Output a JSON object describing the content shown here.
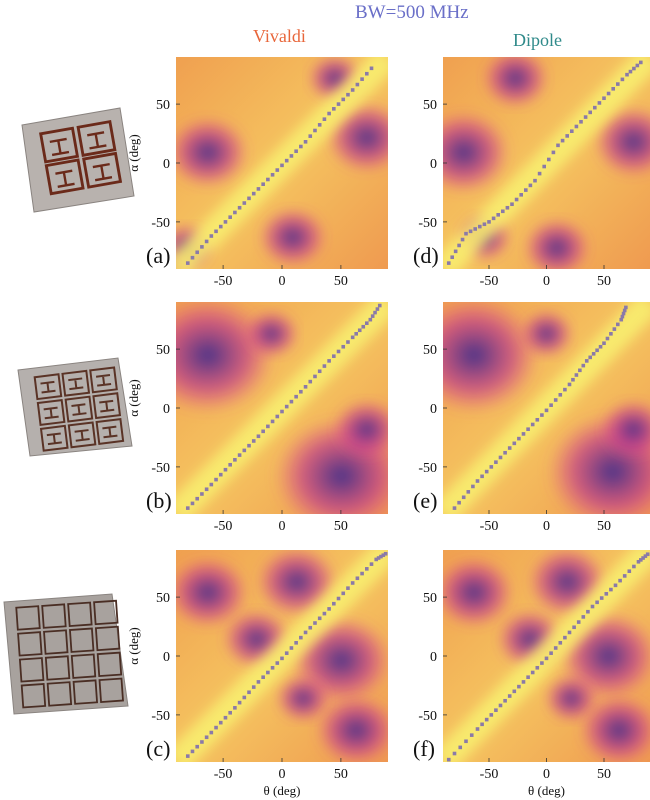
{
  "header": {
    "bandwidth": "BW=500 MHz"
  },
  "columns": [
    {
      "label": "Vivaldi",
      "color": "#e8663a"
    },
    {
      "label": "Dipole",
      "color": "#2f8a8a"
    }
  ],
  "samples": [
    {
      "name": "2x2 metasurface sample",
      "cells": 2
    },
    {
      "name": "3x3 metasurface sample",
      "cells": 3
    },
    {
      "name": "4x4 metasurface sample",
      "cells": 4
    }
  ],
  "colors": {
    "header": "#6a6fc8",
    "low": "#2a1f7a",
    "mid": "#e0408a",
    "high": "#f6f060",
    "markers": "#8a7aa8"
  },
  "chart_data": [
    {
      "id": "a",
      "panel_label": "(a)",
      "type": "heatmap",
      "column": "Vivaldi",
      "sample": "2x2",
      "xlabel": "θ (deg)",
      "ylabel": "α (deg)",
      "xlim": [
        -90,
        90
      ],
      "ylim": [
        -90,
        90
      ],
      "xticks": [
        "-50",
        "0",
        "50"
      ],
      "yticks": [
        "50",
        "0",
        "-50"
      ],
      "show_ylabel": true,
      "show_xticks": true,
      "show_xlabel": false,
      "ridge": [
        [
          -80,
          -85
        ],
        [
          -60,
          -62
        ],
        [
          -40,
          -42
        ],
        [
          -20,
          -22
        ],
        [
          0,
          -2
        ],
        [
          20,
          18
        ],
        [
          40,
          42
        ],
        [
          60,
          62
        ],
        [
          80,
          85
        ]
      ]
    },
    {
      "id": "d",
      "panel_label": "(d)",
      "type": "heatmap",
      "column": "Dipole",
      "sample": "2x2",
      "xlabel": "θ (deg)",
      "ylabel": "α (deg)",
      "xlim": [
        -90,
        90
      ],
      "ylim": [
        -90,
        90
      ],
      "xticks": [
        "-50",
        "0",
        "50"
      ],
      "yticks": [
        "50",
        "0",
        "-50"
      ],
      "show_ylabel": false,
      "show_xticks": true,
      "show_xlabel": false,
      "ridge": [
        [
          -85,
          -85
        ],
        [
          -70,
          -60
        ],
        [
          -50,
          -50
        ],
        [
          -30,
          -35
        ],
        [
          -10,
          -15
        ],
        [
          10,
          15
        ],
        [
          30,
          35
        ],
        [
          50,
          55
        ],
        [
          70,
          75
        ],
        [
          85,
          88
        ]
      ]
    },
    {
      "id": "b",
      "panel_label": "(b)",
      "type": "heatmap",
      "column": "Vivaldi",
      "sample": "3x3",
      "xlabel": "θ (deg)",
      "ylabel": "α (deg)",
      "xlim": [
        -90,
        90
      ],
      "ylim": [
        -90,
        90
      ],
      "xticks": [
        "-50",
        "0",
        "50"
      ],
      "yticks": [
        "50",
        "0",
        "-50"
      ],
      "show_ylabel": true,
      "show_xticks": true,
      "show_xlabel": false,
      "ridge": [
        [
          -80,
          -85
        ],
        [
          -60,
          -65
        ],
        [
          -40,
          -44
        ],
        [
          -20,
          -24
        ],
        [
          0,
          -3
        ],
        [
          20,
          18
        ],
        [
          40,
          40
        ],
        [
          60,
          60
        ],
        [
          75,
          75
        ],
        [
          85,
          90
        ]
      ]
    },
    {
      "id": "e",
      "panel_label": "(e)",
      "type": "heatmap",
      "column": "Dipole",
      "sample": "3x3",
      "xlabel": "θ (deg)",
      "ylabel": "α (deg)",
      "xlim": [
        -90,
        90
      ],
      "ylim": [
        -90,
        90
      ],
      "xticks": [
        "-50",
        "0",
        "50"
      ],
      "yticks": [
        "50",
        "0",
        "-50"
      ],
      "show_ylabel": false,
      "show_xticks": true,
      "show_xlabel": false,
      "ridge": [
        [
          -80,
          -85
        ],
        [
          -60,
          -62
        ],
        [
          -40,
          -42
        ],
        [
          -20,
          -22
        ],
        [
          0,
          -2
        ],
        [
          20,
          20
        ],
        [
          35,
          40
        ],
        [
          50,
          55
        ],
        [
          65,
          75
        ],
        [
          70,
          88
        ]
      ]
    },
    {
      "id": "c",
      "panel_label": "(c)",
      "type": "heatmap",
      "column": "Vivaldi",
      "sample": "4x4",
      "xlabel": "θ (deg)",
      "ylabel": "α (deg)",
      "xlim": [
        -90,
        90
      ],
      "ylim": [
        -90,
        90
      ],
      "xticks": [
        "-50",
        "0",
        "50"
      ],
      "yticks": [
        "50",
        "0",
        "-50"
      ],
      "show_ylabel": true,
      "show_xticks": true,
      "show_xlabel": true,
      "ridge": [
        [
          -80,
          -85
        ],
        [
          -60,
          -65
        ],
        [
          -40,
          -44
        ],
        [
          -20,
          -22
        ],
        [
          0,
          -2
        ],
        [
          20,
          20
        ],
        [
          40,
          40
        ],
        [
          60,
          62
        ],
        [
          80,
          82
        ],
        [
          90,
          88
        ]
      ]
    },
    {
      "id": "f",
      "panel_label": "(f)",
      "type": "heatmap",
      "column": "Dipole",
      "sample": "4x4",
      "xlabel": "θ (deg)",
      "ylabel": "α (deg)",
      "xlim": [
        -90,
        90
      ],
      "ylim": [
        -90,
        90
      ],
      "xticks": [
        "-50",
        "0",
        "50"
      ],
      "yticks": [
        "50",
        "0",
        "-50"
      ],
      "show_ylabel": false,
      "show_xticks": true,
      "show_xlabel": true,
      "ridge": [
        [
          -85,
          -88
        ],
        [
          -60,
          -62
        ],
        [
          -40,
          -42
        ],
        [
          -20,
          -22
        ],
        [
          0,
          -2
        ],
        [
          20,
          20
        ],
        [
          40,
          42
        ],
        [
          60,
          60
        ],
        [
          80,
          80
        ],
        [
          90,
          88
        ]
      ]
    }
  ]
}
